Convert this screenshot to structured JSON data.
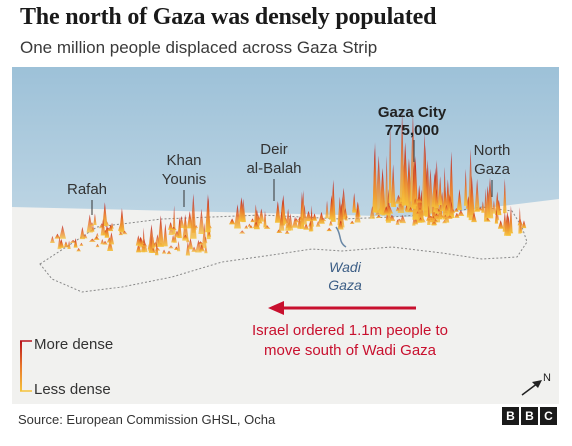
{
  "title": "The north of Gaza was densely populated",
  "subtitle": "One million people displaced across Gaza Strip",
  "map": {
    "places": {
      "rafah": "Rafah",
      "khan_younis_1": "Khan",
      "khan_younis_2": "Younis",
      "deir_1": "Deir",
      "deir_2": "al-Balah",
      "gaza_city": "Gaza City",
      "gaza_city_pop": "775,000",
      "north_gaza_1": "North",
      "north_gaza_2": "Gaza"
    },
    "wadi": {
      "line1": "Wadi",
      "line2": "Gaza"
    },
    "arrow_note": {
      "line1": "Israel ordered 1.1m people to",
      "line2": "move south of Wadi Gaza"
    },
    "legend": {
      "more": "More dense",
      "less": "Less dense"
    },
    "north_label": "N"
  },
  "source": "Source: European Commission GHSL, Ocha",
  "logo": [
    "B",
    "B",
    "C"
  ],
  "colors": {
    "sky_top": "#9fc3da",
    "ground": "#f1f1ef",
    "density_low": "#f5c33b",
    "density_high": "#b8121b",
    "arrow": "#c8102e"
  }
}
